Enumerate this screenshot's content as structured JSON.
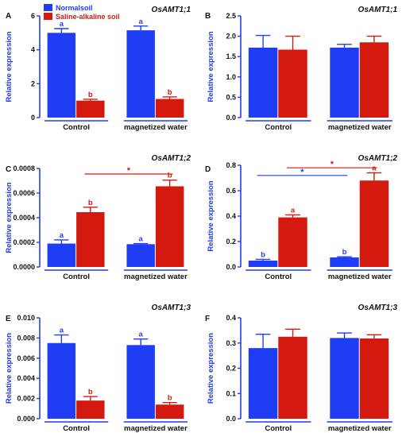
{
  "colors": {
    "normal": "#1f3df5",
    "saline": "#d41a0f",
    "axis": "#1f3df5",
    "text": "#111111"
  },
  "legend": {
    "normal_label": "Normalsoil",
    "saline_label": "Saline-alkaline soil"
  },
  "chart_data": [
    {
      "panel": "A",
      "type": "bar",
      "title": "OsAMT1;1",
      "ylabel": "Relative expression",
      "ylim": [
        0,
        6
      ],
      "yticks": [
        "0",
        "2",
        "4",
        "6"
      ],
      "categories": [
        "Control",
        "magnetized water"
      ],
      "series": [
        {
          "name": "Normalsoil",
          "values": [
            5.0,
            5.15
          ],
          "errors": [
            0.25,
            0.25
          ],
          "letters": [
            "a",
            "a"
          ]
        },
        {
          "name": "Saline-alkaline soil",
          "values": [
            1.0,
            1.1
          ],
          "errors": [
            0.08,
            0.12
          ],
          "letters": [
            "b",
            "b"
          ]
        }
      ],
      "significance": []
    },
    {
      "panel": "B",
      "type": "bar",
      "title": "OsAMT1;1",
      "ylabel": "Relative expression",
      "ylim": [
        0,
        2.5
      ],
      "yticks": [
        "0.0",
        "0.5",
        "1.0",
        "1.5",
        "2.0",
        "2.5"
      ],
      "categories": [
        "Control",
        "magnetized water"
      ],
      "series": [
        {
          "name": "Normalsoil",
          "values": [
            1.72,
            1.72
          ],
          "errors": [
            0.3,
            0.08
          ],
          "letters": [
            "",
            ""
          ]
        },
        {
          "name": "Saline-alkaline soil",
          "values": [
            1.67,
            1.85
          ],
          "errors": [
            0.33,
            0.15
          ],
          "letters": [
            "",
            ""
          ]
        }
      ],
      "significance": []
    },
    {
      "panel": "C",
      "type": "bar",
      "title": "OsAMT1;2",
      "ylabel": "Relative expression",
      "ylim": [
        0,
        0.0008
      ],
      "yticks": [
        "0.0000",
        "0.0002",
        "0.0004",
        "0.0006",
        "0.0008"
      ],
      "categories": [
        "Control",
        "magnetized water"
      ],
      "series": [
        {
          "name": "Normalsoil",
          "values": [
            0.00019,
            0.000185
          ],
          "errors": [
            3e-05,
            5e-06
          ],
          "letters": [
            "a",
            "a"
          ]
        },
        {
          "name": "Saline-alkaline soil",
          "values": [
            0.000445,
            0.000655
          ],
          "errors": [
            4e-05,
            5e-05
          ],
          "letters": [
            "b",
            "b"
          ]
        }
      ],
      "significance": [
        {
          "series": 1,
          "label": "*",
          "level": 0.000755
        }
      ]
    },
    {
      "panel": "D",
      "type": "bar",
      "title": "OsAMT1;2",
      "ylabel": "Relative expression",
      "ylim": [
        0,
        0.8
      ],
      "yticks": [
        "0.0",
        "0.2",
        "0.4",
        "0.6",
        "0.8"
      ],
      "categories": [
        "Control",
        "magnetized water"
      ],
      "series": [
        {
          "name": "Normalsoil",
          "values": [
            0.05,
            0.075
          ],
          "errors": [
            0.01,
            0.005
          ],
          "letters": [
            "b",
            "b"
          ]
        },
        {
          "name": "Saline-alkaline soil",
          "values": [
            0.39,
            0.68
          ],
          "errors": [
            0.02,
            0.06
          ],
          "letters": [
            "a",
            "a"
          ]
        }
      ],
      "significance": [
        {
          "series": 0,
          "label": "*",
          "level": 0.72
        },
        {
          "series": 1,
          "label": "*",
          "level": 0.78
        }
      ]
    },
    {
      "panel": "E",
      "type": "bar",
      "title": "OsAMT1;3",
      "ylabel": "Relative expression",
      "ylim": [
        0,
        0.01
      ],
      "yticks": [
        "0.000",
        "0.002",
        "0.004",
        "0.006",
        "0.008",
        "0.010"
      ],
      "categories": [
        "Control",
        "magnetized water"
      ],
      "series": [
        {
          "name": "Normalsoil",
          "values": [
            0.0075,
            0.0073
          ],
          "errors": [
            0.0008,
            0.0006
          ],
          "letters": [
            "a",
            "a"
          ]
        },
        {
          "name": "Saline-alkaline soil",
          "values": [
            0.0018,
            0.0014
          ],
          "errors": [
            0.0004,
            0.0002
          ],
          "letters": [
            "b",
            "b"
          ]
        }
      ],
      "significance": []
    },
    {
      "panel": "F",
      "type": "bar",
      "title": "OsAMT1;3",
      "ylabel": "Relative expression",
      "ylim": [
        0,
        0.4
      ],
      "yticks": [
        "0.0",
        "0.1",
        "0.2",
        "0.3",
        "0.4"
      ],
      "categories": [
        "Control",
        "magnetized water"
      ],
      "series": [
        {
          "name": "Normalsoil",
          "values": [
            0.28,
            0.32
          ],
          "errors": [
            0.055,
            0.02
          ],
          "letters": [
            "",
            ""
          ]
        },
        {
          "name": "Saline-alkaline soil",
          "values": [
            0.325,
            0.318
          ],
          "errors": [
            0.03,
            0.015
          ],
          "letters": [
            "",
            ""
          ]
        }
      ],
      "significance": []
    }
  ]
}
